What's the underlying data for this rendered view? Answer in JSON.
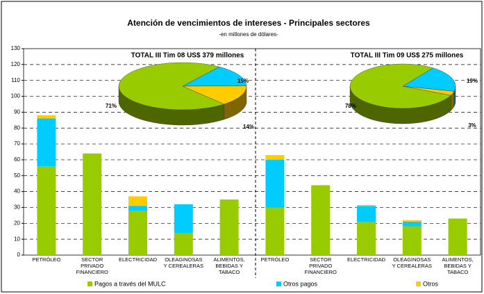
{
  "chart_data": [
    {
      "type": "bar",
      "title": "Atención de vencimientos de intereses - Principales sectores",
      "subtitle": "-en millones de dólares-",
      "stacked": true,
      "categories": [
        "PETRÓLEO",
        "SECTOR\nPRIVADO\nFINANCIERO",
        "ELECTRICIDAD",
        "OLEAGINOSAS\nY CEREALERAS",
        "ALIMENTOS,\nBEBIDAS Y\nTABACO",
        "PETRÓLEO",
        "SECTOR\nPRIVADO\nFINANCIERO",
        "ELECTRICIDAD",
        "OLEAGINOSAS\nY CEREALERAS",
        "ALIMENTOS,\nBEBIDAS Y\nTABACO"
      ],
      "series": [
        {
          "name": "Pagos a través del MULC",
          "color": "#99cc00",
          "values": [
            56,
            64,
            28,
            14,
            35,
            30,
            44,
            21,
            18,
            23
          ]
        },
        {
          "name": "Otros pagos",
          "color": "#00ccff",
          "values": [
            30,
            0,
            3,
            18,
            0,
            30,
            0,
            10,
            3,
            0
          ]
        },
        {
          "name": "Otros",
          "color": "#ffcc00",
          "values": [
            2,
            0,
            6,
            0,
            0,
            3,
            0,
            0.5,
            1,
            0
          ]
        }
      ],
      "ylim": [
        0,
        130
      ],
      "yticks": [
        0,
        10,
        20,
        30,
        40,
        50,
        60,
        70,
        80,
        90,
        100,
        110,
        120,
        130
      ],
      "grid": true
    },
    {
      "type": "pie",
      "title": "TOTAL III Tim 08 US$ 379 millones",
      "values": [
        71,
        15,
        14
      ],
      "value_labels": [
        "71%",
        "15%",
        "14%"
      ],
      "colors": [
        "#99cc00",
        "#00ccff",
        "#ffcc00"
      ]
    },
    {
      "type": "pie",
      "title": "TOTAL III Tim 09 US$ 275 millones",
      "values": [
        78,
        19,
        3
      ],
      "value_labels": [
        "78%",
        "19%",
        "3%"
      ],
      "colors": [
        "#99cc00",
        "#00ccff",
        "#ffcc00"
      ]
    }
  ]
}
